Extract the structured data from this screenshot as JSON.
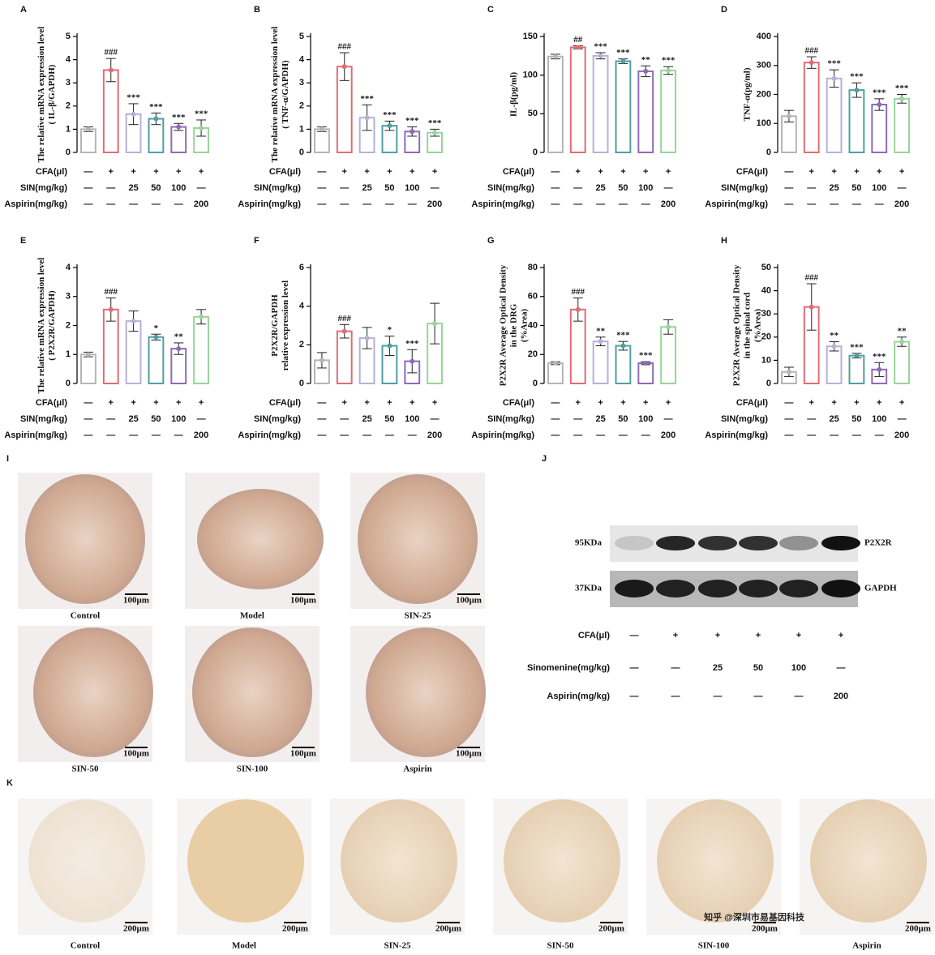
{
  "chart_data": [
    {
      "type": "bar",
      "panel": "A",
      "ylabel": [
        "The relative mRNA expression level",
        "( IL-β/GAPDH)"
      ],
      "ylim": [
        0,
        5
      ],
      "yticks": [
        0,
        1,
        2,
        3,
        4,
        5
      ],
      "values": [
        1.0,
        3.55,
        1.65,
        1.45,
        1.1,
        1.05
      ],
      "errors": [
        0.1,
        0.5,
        0.45,
        0.25,
        0.15,
        0.35
      ],
      "annotations": [
        null,
        "###",
        "***",
        "***",
        "***",
        "***"
      ],
      "colors": [
        "#b5b5b5",
        "#e06c75",
        "#b7b0d8",
        "#4f9fa3",
        "#8e6bb8",
        "#98d59a"
      ],
      "conditions": [
        {
          "label": "CFA(μl)",
          "cells": [
            "—",
            "+",
            "+",
            "+",
            "+",
            "+"
          ]
        },
        {
          "label": "SIN(mg/kg)",
          "cells": [
            "—",
            "—",
            "25",
            "50",
            "100",
            "—"
          ]
        },
        {
          "label": "Aspirin(mg/kg)",
          "cells": [
            "—",
            "—",
            "—",
            "—",
            "—",
            "200"
          ]
        }
      ]
    },
    {
      "type": "bar",
      "panel": "B",
      "ylabel": [
        "The relative mRNA expression level",
        "( TNF-α/GAPDH)"
      ],
      "ylim": [
        0,
        5
      ],
      "yticks": [
        0,
        1,
        2,
        3,
        4,
        5
      ],
      "values": [
        1.0,
        3.7,
        1.5,
        1.15,
        0.9,
        0.85
      ],
      "errors": [
        0.1,
        0.6,
        0.55,
        0.2,
        0.2,
        0.15
      ],
      "annotations": [
        null,
        "###",
        "***",
        "***",
        "***",
        "***"
      ],
      "colors": [
        "#b5b5b5",
        "#e06c75",
        "#b7b0d8",
        "#4f9fa3",
        "#8e6bb8",
        "#98d59a"
      ],
      "conditions": [
        {
          "label": "CFA(μl)",
          "cells": [
            "—",
            "+",
            "+",
            "+",
            "+",
            "+"
          ]
        },
        {
          "label": "SIN(mg/kg)",
          "cells": [
            "—",
            "—",
            "25",
            "50",
            "100",
            "—"
          ]
        },
        {
          "label": "Aspirin(mg/kg)",
          "cells": [
            "—",
            "—",
            "—",
            "—",
            "—",
            "200"
          ]
        }
      ]
    },
    {
      "type": "bar",
      "panel": "C",
      "ylabel": [
        "IL-β(pg/ml)"
      ],
      "ylim": [
        0,
        150
      ],
      "yticks": [
        0,
        50,
        100,
        150
      ],
      "values": [
        124,
        136,
        125,
        118,
        105,
        106
      ],
      "errors": [
        3,
        2,
        4,
        3,
        7,
        5
      ],
      "annotations": [
        null,
        "##",
        "***",
        "***",
        "**",
        "***"
      ],
      "colors": [
        "#b5b5b5",
        "#e06c75",
        "#b7b0d8",
        "#4f9fa3",
        "#8e6bb8",
        "#98d59a"
      ],
      "conditions": [
        {
          "label": "CFA(μl)",
          "cells": [
            "—",
            "+",
            "+",
            "+",
            "+",
            "+"
          ]
        },
        {
          "label": "SIN(mg/kg)",
          "cells": [
            "—",
            "—",
            "25",
            "50",
            "100",
            "—"
          ]
        },
        {
          "label": "Aspirin(mg/kg)",
          "cells": [
            "—",
            "—",
            "—",
            "—",
            "—",
            "200"
          ]
        }
      ]
    },
    {
      "type": "bar",
      "panel": "D",
      "ylabel": [
        "TNF-α(pg/ml)"
      ],
      "ylim": [
        0,
        400
      ],
      "yticks": [
        0,
        100,
        200,
        300,
        400
      ],
      "values": [
        125,
        310,
        255,
        215,
        165,
        185
      ],
      "errors": [
        20,
        20,
        30,
        25,
        20,
        15
      ],
      "annotations": [
        null,
        "###",
        "***",
        "***",
        "***",
        "***"
      ],
      "colors": [
        "#b5b5b5",
        "#e06c75",
        "#b7b0d8",
        "#4f9fa3",
        "#8e6bb8",
        "#98d59a"
      ],
      "conditions": [
        {
          "label": "CFA(μl)",
          "cells": [
            "—",
            "+",
            "+",
            "+",
            "+",
            "+"
          ]
        },
        {
          "label": "SIN(mg/kg)",
          "cells": [
            "—",
            "—",
            "25",
            "50",
            "100",
            "—"
          ]
        },
        {
          "label": "Aspirin(mg/kg)",
          "cells": [
            "—",
            "—",
            "—",
            "—",
            "—",
            "200"
          ]
        }
      ]
    },
    {
      "type": "bar",
      "panel": "E",
      "ylabel": [
        "The relative mRNA expression level",
        "( P2X2R/GAPDH)"
      ],
      "ylim": [
        0,
        4
      ],
      "yticks": [
        0,
        1,
        2,
        3,
        4
      ],
      "values": [
        1.0,
        2.55,
        2.15,
        1.6,
        1.2,
        2.3
      ],
      "errors": [
        0.08,
        0.4,
        0.35,
        0.1,
        0.2,
        0.25
      ],
      "annotations": [
        null,
        "###",
        null,
        "*",
        "**",
        null
      ],
      "colors": [
        "#b5b5b5",
        "#e06c75",
        "#b7b0d8",
        "#4f9fa3",
        "#8e6bb8",
        "#98d59a"
      ],
      "conditions": [
        {
          "label": "CFA(μl)",
          "cells": [
            "—",
            "+",
            "+",
            "+",
            "+",
            "+"
          ]
        },
        {
          "label": "SIN(mg/kg)",
          "cells": [
            "—",
            "—",
            "25",
            "50",
            "100",
            "—"
          ]
        },
        {
          "label": "Aspirin(mg/kg)",
          "cells": [
            "—",
            "—",
            "—",
            "—",
            "—",
            "200"
          ]
        }
      ]
    },
    {
      "type": "bar",
      "panel": "F",
      "ylabel": [
        "P2X2R/GAPDH",
        "relative expression level"
      ],
      "ylim": [
        0,
        6
      ],
      "yticks": [
        0,
        2,
        4,
        6
      ],
      "values": [
        1.2,
        2.7,
        2.35,
        1.95,
        1.15,
        3.1
      ],
      "errors": [
        0.4,
        0.35,
        0.55,
        0.5,
        0.6,
        1.05
      ],
      "annotations": [
        null,
        "###",
        null,
        "*",
        "***",
        null
      ],
      "colors": [
        "#b5b5b5",
        "#e06c75",
        "#b7b0d8",
        "#4f9fa3",
        "#8e6bb8",
        "#98d59a"
      ],
      "conditions": [
        {
          "label": "CFA(μl)",
          "cells": [
            "—",
            "+",
            "+",
            "+",
            "+",
            "+"
          ]
        },
        {
          "label": "SIN(mg/kg)",
          "cells": [
            "—",
            "—",
            "25",
            "50",
            "100",
            "—"
          ]
        },
        {
          "label": "Aspirin(mg/kg)",
          "cells": [
            "—",
            "—",
            "—",
            "—",
            "—",
            "200"
          ]
        }
      ]
    },
    {
      "type": "bar",
      "panel": "G",
      "ylabel": [
        "P2X2R Average Optical Density",
        "in the DRG",
        "(%Area)"
      ],
      "ylim": [
        0,
        80
      ],
      "yticks": [
        0,
        20,
        40,
        60,
        80
      ],
      "values": [
        14,
        51,
        29,
        26,
        14,
        39
      ],
      "errors": [
        1,
        8,
        3,
        3,
        1,
        5
      ],
      "annotations": [
        null,
        "###",
        "**",
        "***",
        "***",
        null
      ],
      "colors": [
        "#b5b5b5",
        "#e06c75",
        "#b7b0d8",
        "#4f9fa3",
        "#8e6bb8",
        "#98d59a"
      ],
      "conditions": [
        {
          "label": "CFA(μl)",
          "cells": [
            "—",
            "+",
            "+",
            "+",
            "+",
            "+"
          ]
        },
        {
          "label": "SIN(mg/kg)",
          "cells": [
            "—",
            "—",
            "25",
            "50",
            "100",
            "—"
          ]
        },
        {
          "label": "Aspirin(mg/kg)",
          "cells": [
            "—",
            "—",
            "—",
            "—",
            "—",
            "200"
          ]
        }
      ]
    },
    {
      "type": "bar",
      "panel": "H",
      "ylabel": [
        "P2X2R Average Optical Density",
        "in the spinal cord",
        "(%Area)"
      ],
      "ylim": [
        0,
        50
      ],
      "yticks": [
        0,
        10,
        20,
        30,
        40,
        50
      ],
      "values": [
        5,
        33,
        16,
        12,
        6,
        18
      ],
      "errors": [
        2,
        10,
        2,
        1,
        3,
        2
      ],
      "annotations": [
        null,
        "###",
        "**",
        "***",
        "***",
        "**"
      ],
      "colors": [
        "#b5b5b5",
        "#e06c75",
        "#b7b0d8",
        "#4f9fa3",
        "#8e6bb8",
        "#98d59a"
      ],
      "conditions": [
        {
          "label": "CFA(μl)",
          "cells": [
            "—",
            "+",
            "+",
            "+",
            "+",
            "+"
          ]
        },
        {
          "label": "SIN(mg/kg)",
          "cells": [
            "—",
            "—",
            "25",
            "50",
            "100",
            "—"
          ]
        },
        {
          "label": "Aspirin(mg/kg)",
          "cells": [
            "—",
            "—",
            "—",
            "—",
            "—",
            "200"
          ]
        }
      ]
    }
  ],
  "panel_i": {
    "label": "I",
    "captions": [
      "Control",
      "Model",
      "SIN-25",
      "SIN-50",
      "SIN-100",
      "Aspirin"
    ],
    "scale_bar": "100μm"
  },
  "panel_j": {
    "label": "J",
    "bands": [
      {
        "size": "95KDa",
        "protein": "P2X2R"
      },
      {
        "size": "37KDa",
        "protein": "GAPDH"
      }
    ],
    "conditions": [
      {
        "label": "CFA(μl)",
        "cells": [
          "—",
          "+",
          "+",
          "+",
          "+",
          "+"
        ]
      },
      {
        "label": "Sinomenine(mg/kg)",
        "cells": [
          "—",
          "—",
          "25",
          "50",
          "100",
          "—"
        ]
      },
      {
        "label": "Aspirin(mg/kg)",
        "cells": [
          "—",
          "—",
          "—",
          "—",
          "—",
          "200"
        ]
      }
    ]
  },
  "panel_k": {
    "label": "K",
    "captions": [
      "Control",
      "Model",
      "SIN-25",
      "SIN-50",
      "SIN-100",
      "Aspirin"
    ],
    "scale_bar": "200μm"
  },
  "watermark": "知乎 @深圳市易基因科技"
}
